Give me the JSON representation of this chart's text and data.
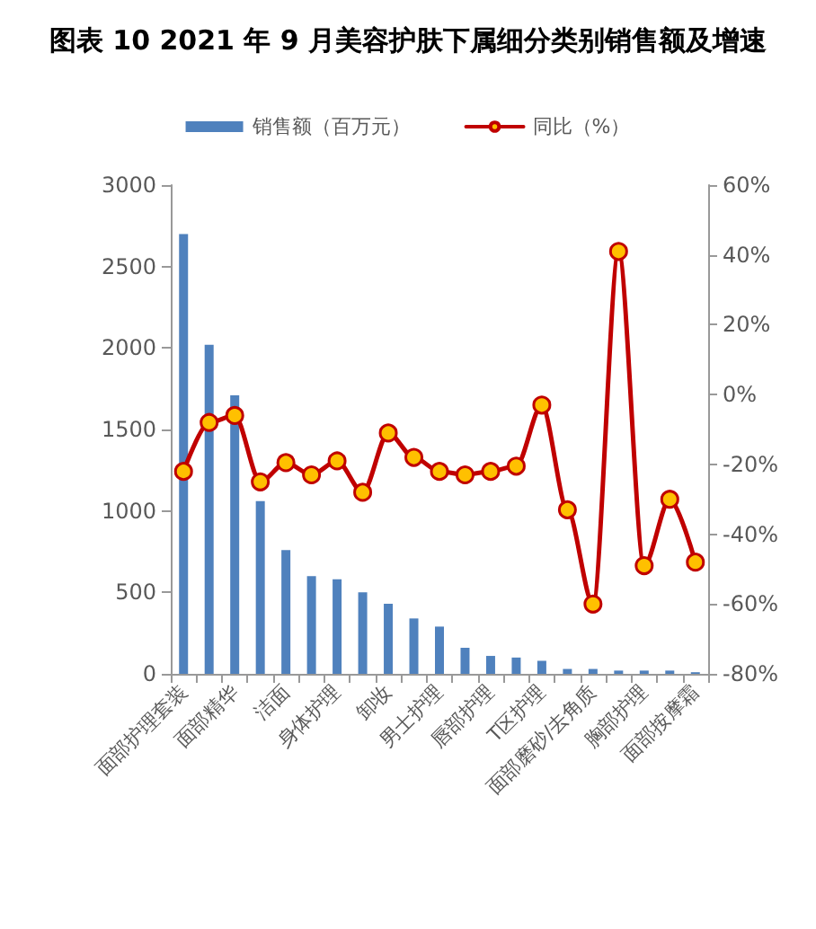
{
  "chart_data": {
    "type": "bar",
    "title": "图表 10 2021 年 9 月美容护肤下属细分类别销售额及增速",
    "categories": [
      "面部护理套装",
      null,
      "面部精华",
      null,
      "洁面",
      null,
      "身体护理",
      null,
      "卸妆",
      null,
      "男士护理",
      null,
      "唇部护理",
      null,
      "T区护理",
      null,
      "面部磨砂/去角质",
      null,
      "胸部护理",
      null,
      "面部按摩霜"
    ],
    "series": [
      {
        "name": "销售额（百万元）",
        "color": "#4f81bd",
        "values": [
          2700,
          2020,
          1710,
          1060,
          760,
          600,
          580,
          500,
          430,
          340,
          290,
          160,
          110,
          100,
          80,
          30,
          30,
          20,
          20,
          20,
          10
        ]
      },
      {
        "name": "同比（%）",
        "type": "line",
        "axis": "y2",
        "color": "#c00000",
        "marker": "circle",
        "line_style": "solid",
        "values": [
          -22,
          -8,
          -6,
          -25,
          -19.5,
          -23,
          -19,
          -28,
          -11,
          -18,
          -22,
          -23,
          -22,
          -20.5,
          -3,
          -33,
          -60,
          41,
          -49,
          -30,
          -48
        ]
      }
    ],
    "ylim": [
      0,
      3000
    ],
    "yticks": [
      0,
      500,
      1000,
      1500,
      2000,
      2500,
      3000
    ],
    "y2lim": [
      -80,
      60
    ],
    "y2ticks": [
      {
        "value": -80,
        "label": "-80%"
      },
      {
        "value": -60,
        "label": "-60%"
      },
      {
        "value": -40,
        "label": "-40%"
      },
      {
        "value": -20,
        "label": "-20%"
      },
      {
        "value": 0,
        "label": "0%"
      },
      {
        "value": 20,
        "label": "20%"
      },
      {
        "value": 40,
        "label": "40%"
      },
      {
        "value": 60,
        "label": "60%"
      }
    ],
    "grid": false,
    "legend": "top"
  }
}
